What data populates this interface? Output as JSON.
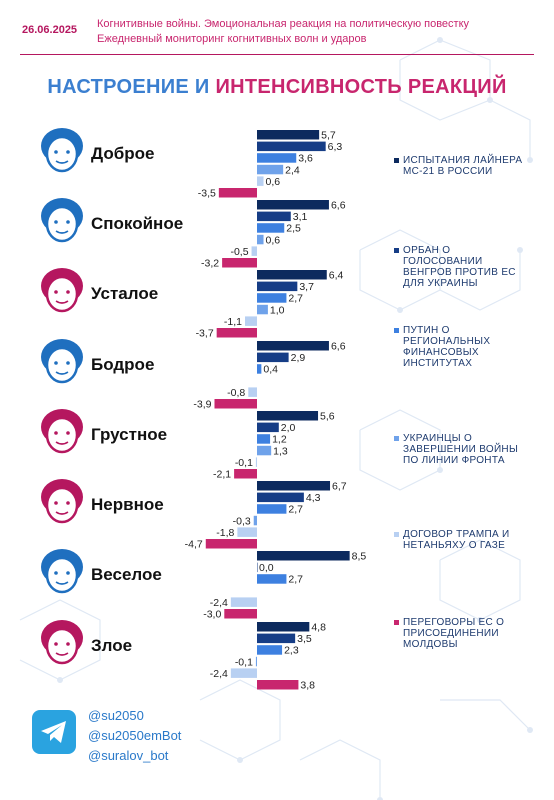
{
  "header": {
    "date": "26.06.2025",
    "line1": "Когнитивные войны. Эмоциональная реакция на политическую повестку",
    "line2": "Ежедневный мониторинг когнитивных волн и ударов"
  },
  "title_part1": "НАСТРОЕНИЕ И ",
  "title_part2": "ИНТЕНСИВНОСТЬ РЕАКЦИЙ",
  "colors": {
    "s1": "#0c2a5e",
    "s2": "#163d86",
    "s3": "#3d80e0",
    "s4": "#6fa2ea",
    "s5": "#b8d0f2",
    "s6": "#c8266e",
    "face_blue": "#1f6fbf",
    "face_red": "#b5175f"
  },
  "chart_data": {
    "type": "bar",
    "orientation": "horizontal",
    "categories": [
      "Доброе",
      "Спокойное",
      "Усталое",
      "Бодрое",
      "Грустное",
      "Нервное",
      "Веселое",
      "Злое"
    ],
    "category_face_colors": [
      "blue",
      "blue",
      "red",
      "blue",
      "red",
      "red",
      "blue",
      "red"
    ],
    "series": [
      {
        "name": "ИСПЫТАНИЯ ЛАЙНЕРА МС-21 В РОССИИ",
        "values": [
          5.7,
          6.6,
          6.4,
          6.6,
          5.6,
          6.7,
          8.5,
          4.8
        ]
      },
      {
        "name": "ОРБАН О ГОЛОСОВАНИИ ВЕНГРОВ ПРОТИВ ЕС ДЛЯ УКРАИНЫ",
        "values": [
          6.3,
          3.1,
          3.7,
          2.9,
          2.0,
          4.3,
          0.0,
          3.5
        ]
      },
      {
        "name": "ПУТИН О РЕГИОНАЛЬНЫХ ФИНАНСОВЫХ ИНСТИТУТАХ",
        "values": [
          3.6,
          2.5,
          2.7,
          0.4,
          1.2,
          2.7,
          2.7,
          2.3
        ]
      },
      {
        "name": "УКРАИНЦЫ О ЗАВЕРШЕНИИ ВОЙНЫ ПО ЛИНИИ ФРОНТА",
        "values": [
          2.4,
          0.6,
          1.0,
          null,
          1.3,
          -0.3,
          null,
          -0.1
        ]
      },
      {
        "name": "ДОГОВОР ТРАМПА И НЕТАНЬЯХУ О ГАЗЕ",
        "values": [
          0.6,
          -0.5,
          -1.1,
          -0.8,
          -0.1,
          -1.8,
          -2.4,
          -2.4
        ]
      },
      {
        "name": "ПЕРЕГОВОРЫ ЕС О ПРИСОЕДИНЕНИИ МОЛДОВЫ",
        "values": [
          -3.5,
          -3.2,
          -3.7,
          -3.9,
          -2.1,
          -4.7,
          -3.0,
          3.8
        ]
      }
    ],
    "data_labels": [
      [
        "5,7",
        "6,3",
        "3,6",
        "2,4",
        "0,6",
        "-3,5"
      ],
      [
        "6,6",
        "3,1",
        "2,5",
        "0,6",
        "-0,5",
        "-3,2"
      ],
      [
        "6,4",
        "3,7",
        "2,7",
        "1,0",
        "-1,1",
        "-3,7"
      ],
      [
        "6,6",
        "2,9",
        "0,4",
        "",
        "-0,8",
        "-3,9"
      ],
      [
        "5,6",
        "2,0",
        "1,2",
        "1,3",
        "-0,1",
        "-2,1"
      ],
      [
        "6,7",
        "4,3",
        "2,7",
        "-0,3",
        "-1,8",
        "-4,7"
      ],
      [
        "8,5",
        "0,0",
        "2,7",
        "",
        "-2,4",
        "-3,0"
      ],
      [
        "4,8",
        "3,5",
        "2,3",
        "-0,1",
        "-2,4",
        "3,8"
      ]
    ],
    "legend_position": "right",
    "grid": false
  },
  "footer": {
    "handles": [
      "@su2050",
      "@su2050emBot",
      "@suralov_bot"
    ]
  }
}
